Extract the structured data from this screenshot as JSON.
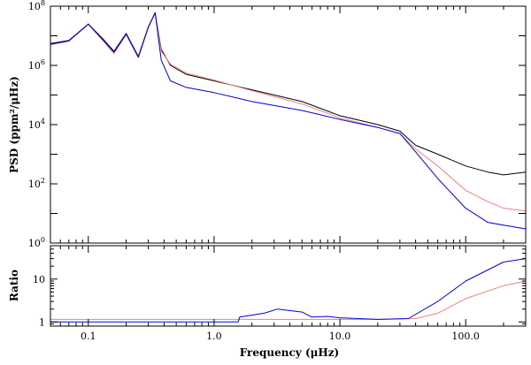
{
  "chart_data": [
    {
      "type": "line",
      "panel": "top",
      "x_scale": "log",
      "y_scale": "log",
      "xlim": [
        0.05,
        300
      ],
      "ylim": [
        1,
        100000000
      ],
      "xlabel": "",
      "ylabel": "PSD (ppm²/μHz)",
      "y_major_ticks": [
        {
          "value": 1,
          "base": "10",
          "exp": "0"
        },
        {
          "value": 100,
          "base": "10",
          "exp": "2"
        },
        {
          "value": 10000,
          "base": "10",
          "exp": "4"
        },
        {
          "value": 1000000,
          "base": "10",
          "exp": "6"
        },
        {
          "value": 100000000,
          "base": "10",
          "exp": "8"
        }
      ],
      "series": [
        {
          "name": "black",
          "color": "#000000",
          "x": [
            0.05,
            0.07,
            0.1,
            0.13,
            0.16,
            0.2,
            0.25,
            0.3,
            0.34,
            0.38,
            0.45,
            0.6,
            1,
            2,
            5,
            10,
            20,
            30,
            40,
            60,
            100,
            150,
            200,
            300
          ],
          "y": [
            5500000,
            7000000,
            25000000,
            8000000,
            3000000,
            12000000,
            2000000,
            20000000,
            60000000,
            3500000,
            1000000,
            500000,
            300000,
            150000,
            60000,
            20000,
            10000,
            6000,
            2000,
            1000,
            400,
            250,
            200,
            250
          ]
        },
        {
          "name": "red",
          "color": "#f08080",
          "x": [
            0.05,
            0.07,
            0.1,
            0.13,
            0.16,
            0.2,
            0.25,
            0.3,
            0.34,
            0.38,
            0.45,
            0.6,
            1,
            2,
            5,
            10,
            20,
            30,
            40,
            60,
            100,
            150,
            200,
            300
          ],
          "y": [
            5000000,
            6500000,
            24000000,
            7000000,
            2500000,
            11000000,
            1800000,
            19000000,
            58000000,
            3000000,
            1100000,
            550000,
            320000,
            140000,
            50000,
            17000,
            8000,
            5000,
            1500,
            400,
            60,
            25,
            15,
            12
          ]
        },
        {
          "name": "blue",
          "color": "#0000dd",
          "x": [
            0.05,
            0.07,
            0.1,
            0.13,
            0.16,
            0.2,
            0.25,
            0.3,
            0.34,
            0.38,
            0.45,
            0.6,
            1,
            2,
            5,
            10,
            20,
            30,
            40,
            60,
            100,
            150,
            200,
            300
          ],
          "y": [
            5200000,
            6800000,
            25000000,
            7500000,
            2800000,
            11500000,
            1900000,
            19500000,
            60000000,
            1500000,
            300000,
            180000,
            120000,
            60000,
            30000,
            15000,
            8000,
            5000,
            1200,
            150,
            15,
            5,
            4,
            3
          ]
        }
      ]
    },
    {
      "type": "line",
      "panel": "bottom",
      "x_scale": "log",
      "y_scale": "log",
      "xlim": [
        0.05,
        300
      ],
      "ylim": [
        0.8,
        60
      ],
      "xlabel": "Frequency (μHz)",
      "ylabel": "Ratio",
      "x_ticks": [
        0.1,
        1.0,
        10.0,
        100.0
      ],
      "x_tick_labels": [
        "0.1",
        "1.0",
        "10.0",
        "100.0"
      ],
      "y_ticks": [
        1,
        10
      ],
      "y_tick_labels": [
        "1",
        "10"
      ],
      "series": [
        {
          "name": "red",
          "color": "#f08080",
          "x": [
            0.05,
            0.5,
            1.0,
            1.6,
            3,
            5,
            8,
            20,
            40,
            60,
            100,
            200,
            300
          ],
          "y": [
            1.15,
            1.15,
            1.15,
            1.15,
            1.15,
            1.15,
            1.15,
            1.15,
            1.2,
            1.6,
            3.5,
            7,
            9
          ]
        },
        {
          "name": "blue",
          "color": "#0000dd",
          "x": [
            0.05,
            0.5,
            1.0,
            1.55,
            1.6,
            2.5,
            3.2,
            5,
            6,
            8,
            10,
            20,
            35,
            60,
            100,
            200,
            300
          ],
          "y": [
            1.0,
            1.0,
            1.0,
            1.0,
            1.3,
            1.6,
            2.0,
            1.7,
            1.3,
            1.35,
            1.25,
            1.15,
            1.2,
            3,
            9,
            25,
            30
          ]
        }
      ]
    }
  ]
}
